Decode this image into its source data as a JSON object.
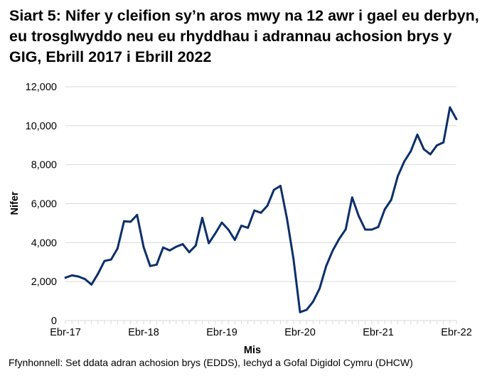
{
  "chart_data": {
    "type": "line",
    "title": "Siart 5: Nifer y cleifion sy’n aros mwy na 12 awr i gael eu derbyn, eu trosglwyddo neu eu rhyddhau i adrannau achosion brys y GIG, Ebrill 2017 i Ebrill 2022",
    "xlabel": "Mis",
    "ylabel": "Nifer",
    "ylim": [
      0,
      12000
    ],
    "yticks": [
      "0",
      "2,000",
      "4,000",
      "6,000",
      "8,000",
      "10,000",
      "12,000"
    ],
    "xtick_labels": [
      "Ebr-17",
      "Ebr-18",
      "Ebr-19",
      "Ebr-20",
      "Ebr-21",
      "Ebr-22"
    ],
    "grid": "horizontal",
    "line_color": "#0b2f6b",
    "start_month": "Ebr-17",
    "values": [
      2200,
      2320,
      2260,
      2130,
      1850,
      2400,
      3060,
      3130,
      3700,
      5100,
      5070,
      5420,
      3770,
      2800,
      2870,
      3750,
      3600,
      3790,
      3920,
      3510,
      3850,
      5270,
      3970,
      4470,
      5030,
      4670,
      4140,
      4870,
      4760,
      5650,
      5530,
      5900,
      6710,
      6910,
      5220,
      3160,
      430,
      550,
      970,
      1640,
      2790,
      3580,
      4190,
      4680,
      6320,
      5370,
      4670,
      4670,
      4800,
      5710,
      6200,
      7410,
      8170,
      8690,
      9540,
      8790,
      8530,
      8990,
      9140,
      10940,
      10330
    ]
  },
  "source": "Ffynhonnell: Set ddata adran achosion brys (EDDS), Iechyd a Gofal Digidol Cymru (DHCW)"
}
